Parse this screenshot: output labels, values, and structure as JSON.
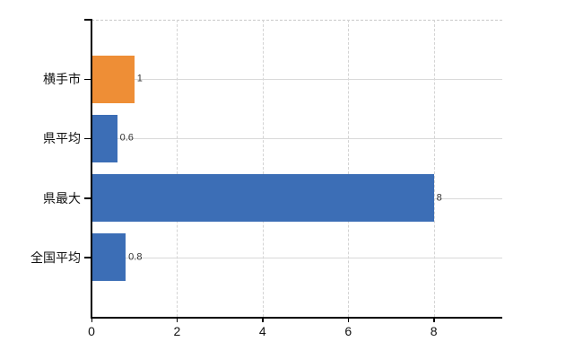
{
  "chart_data": {
    "type": "bar",
    "orientation": "horizontal",
    "title": "",
    "xlabel": "",
    "ylabel": "",
    "categories": [
      "横手市",
      "県平均",
      "県最大",
      "全国平均"
    ],
    "values": [
      1,
      0.6,
      8,
      0.8
    ],
    "value_labels": [
      "1",
      "0.6",
      "8",
      "0.8"
    ],
    "bar_colors": [
      "#ee8e36",
      "#3c6eb6",
      "#3c6eb6",
      "#3c6eb6"
    ],
    "x_ticks": [
      0,
      2,
      4,
      6,
      8
    ],
    "x_tick_labels": [
      "0",
      "2",
      "4",
      "6",
      "8"
    ],
    "xlim": [
      0,
      9.6
    ],
    "grid": true,
    "legend": null,
    "colors": {
      "orange_series": "#ee8e36",
      "blue_series": "#3c6eb6",
      "axis": "#000000",
      "gridline_horizontal": "#d9d9d9",
      "gridline_vertical": "#d4d4d4",
      "plot_top_border": "#c9c9c9",
      "background": "#ffffff",
      "category_text": "#111111",
      "value_text": "#333333"
    }
  }
}
